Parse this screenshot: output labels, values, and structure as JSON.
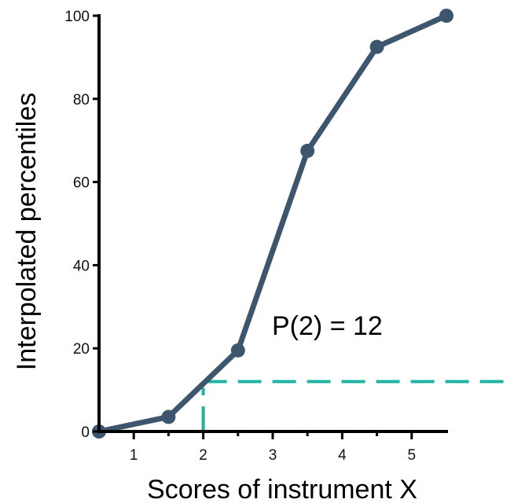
{
  "chart_data": {
    "type": "line",
    "title": "",
    "xlabel": "Scores of instrument X",
    "ylabel": "Interpolated percentiles",
    "xlim": [
      0.5,
      5.5
    ],
    "ylim": [
      0,
      100
    ],
    "x_ticks": [
      1,
      2,
      3,
      4,
      5
    ],
    "y_ticks": [
      0,
      20,
      40,
      60,
      80,
      100
    ],
    "minor_x_ticks": [
      1.5,
      2.5,
      3.5,
      4.5
    ],
    "grid": false,
    "series": [
      {
        "color": "#3d566e",
        "points": [
          {
            "x": 0.5,
            "y": 0
          },
          {
            "x": 1.5,
            "y": 3.5
          },
          {
            "x": 2.5,
            "y": 19.5
          },
          {
            "x": 3.5,
            "y": 67.5
          },
          {
            "x": 4.5,
            "y": 92.5
          },
          {
            "x": 5.5,
            "y": 100
          }
        ]
      }
    ],
    "reference": {
      "x": 2,
      "y": 12,
      "color": "#1fb3a3",
      "style": "dashed"
    },
    "annotation": "P(2) = 12"
  }
}
